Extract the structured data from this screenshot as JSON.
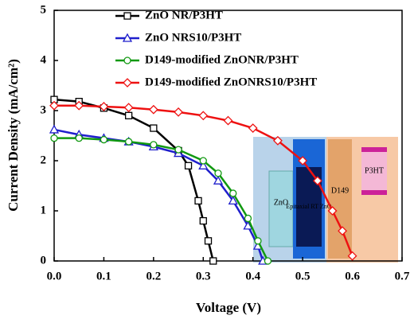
{
  "chart_data": {
    "type": "line",
    "xlabel": "Voltage (V)",
    "ylabel": "Current Density (mA/cm²)",
    "xlim": [
      0,
      0.7
    ],
    "ylim": [
      0,
      5
    ],
    "xticks": [
      {
        "value": 0,
        "label": "0.0"
      },
      0.1,
      0.2,
      0.3,
      0.4,
      0.5,
      0.6,
      0.7
    ],
    "yticks": [
      0,
      1,
      2,
      3,
      4,
      5
    ],
    "legend": "upper left",
    "annotations": [
      "ZnO",
      "Epitaxial RT ZnO",
      "D149",
      "P3HT"
    ],
    "series": [
      {
        "name": "ZnO NR/P3HT",
        "color": "#000000",
        "marker": "square",
        "x": [
          0,
          0.05,
          0.1,
          0.15,
          0.2,
          0.25,
          0.27,
          0.29,
          0.3,
          0.31,
          0.32
        ],
        "values": [
          3.22,
          3.18,
          3.05,
          2.9,
          2.65,
          2.2,
          1.9,
          1.2,
          0.8,
          0.4,
          0
        ]
      },
      {
        "name": "ZnO NRS10/P3HT",
        "color": "#1f1fcc",
        "marker": "triangle",
        "x": [
          0,
          0.05,
          0.1,
          0.15,
          0.2,
          0.25,
          0.3,
          0.33,
          0.36,
          0.39,
          0.41,
          0.42
        ],
        "values": [
          2.62,
          2.52,
          2.45,
          2.38,
          2.28,
          2.15,
          1.9,
          1.6,
          1.2,
          0.7,
          0.3,
          0
        ]
      },
      {
        "name": "D149-modified ZnONR/P3HT",
        "color": "#119911",
        "marker": "circle",
        "x": [
          0,
          0.05,
          0.1,
          0.15,
          0.2,
          0.25,
          0.3,
          0.33,
          0.36,
          0.39,
          0.41,
          0.43
        ],
        "values": [
          2.45,
          2.45,
          2.42,
          2.38,
          2.32,
          2.22,
          2.0,
          1.75,
          1.35,
          0.85,
          0.4,
          0
        ]
      },
      {
        "name": "D149-modified ZnONRS10/P3HT",
        "color": "#ee1111",
        "marker": "diamond",
        "x": [
          0,
          0.05,
          0.1,
          0.15,
          0.2,
          0.25,
          0.3,
          0.35,
          0.4,
          0.45,
          0.5,
          0.53,
          0.56,
          0.58,
          0.6
        ],
        "values": [
          3.1,
          3.1,
          3.08,
          3.06,
          3.02,
          2.97,
          2.9,
          2.8,
          2.65,
          2.4,
          2.0,
          1.6,
          1.0,
          0.6,
          0.1
        ]
      }
    ]
  }
}
